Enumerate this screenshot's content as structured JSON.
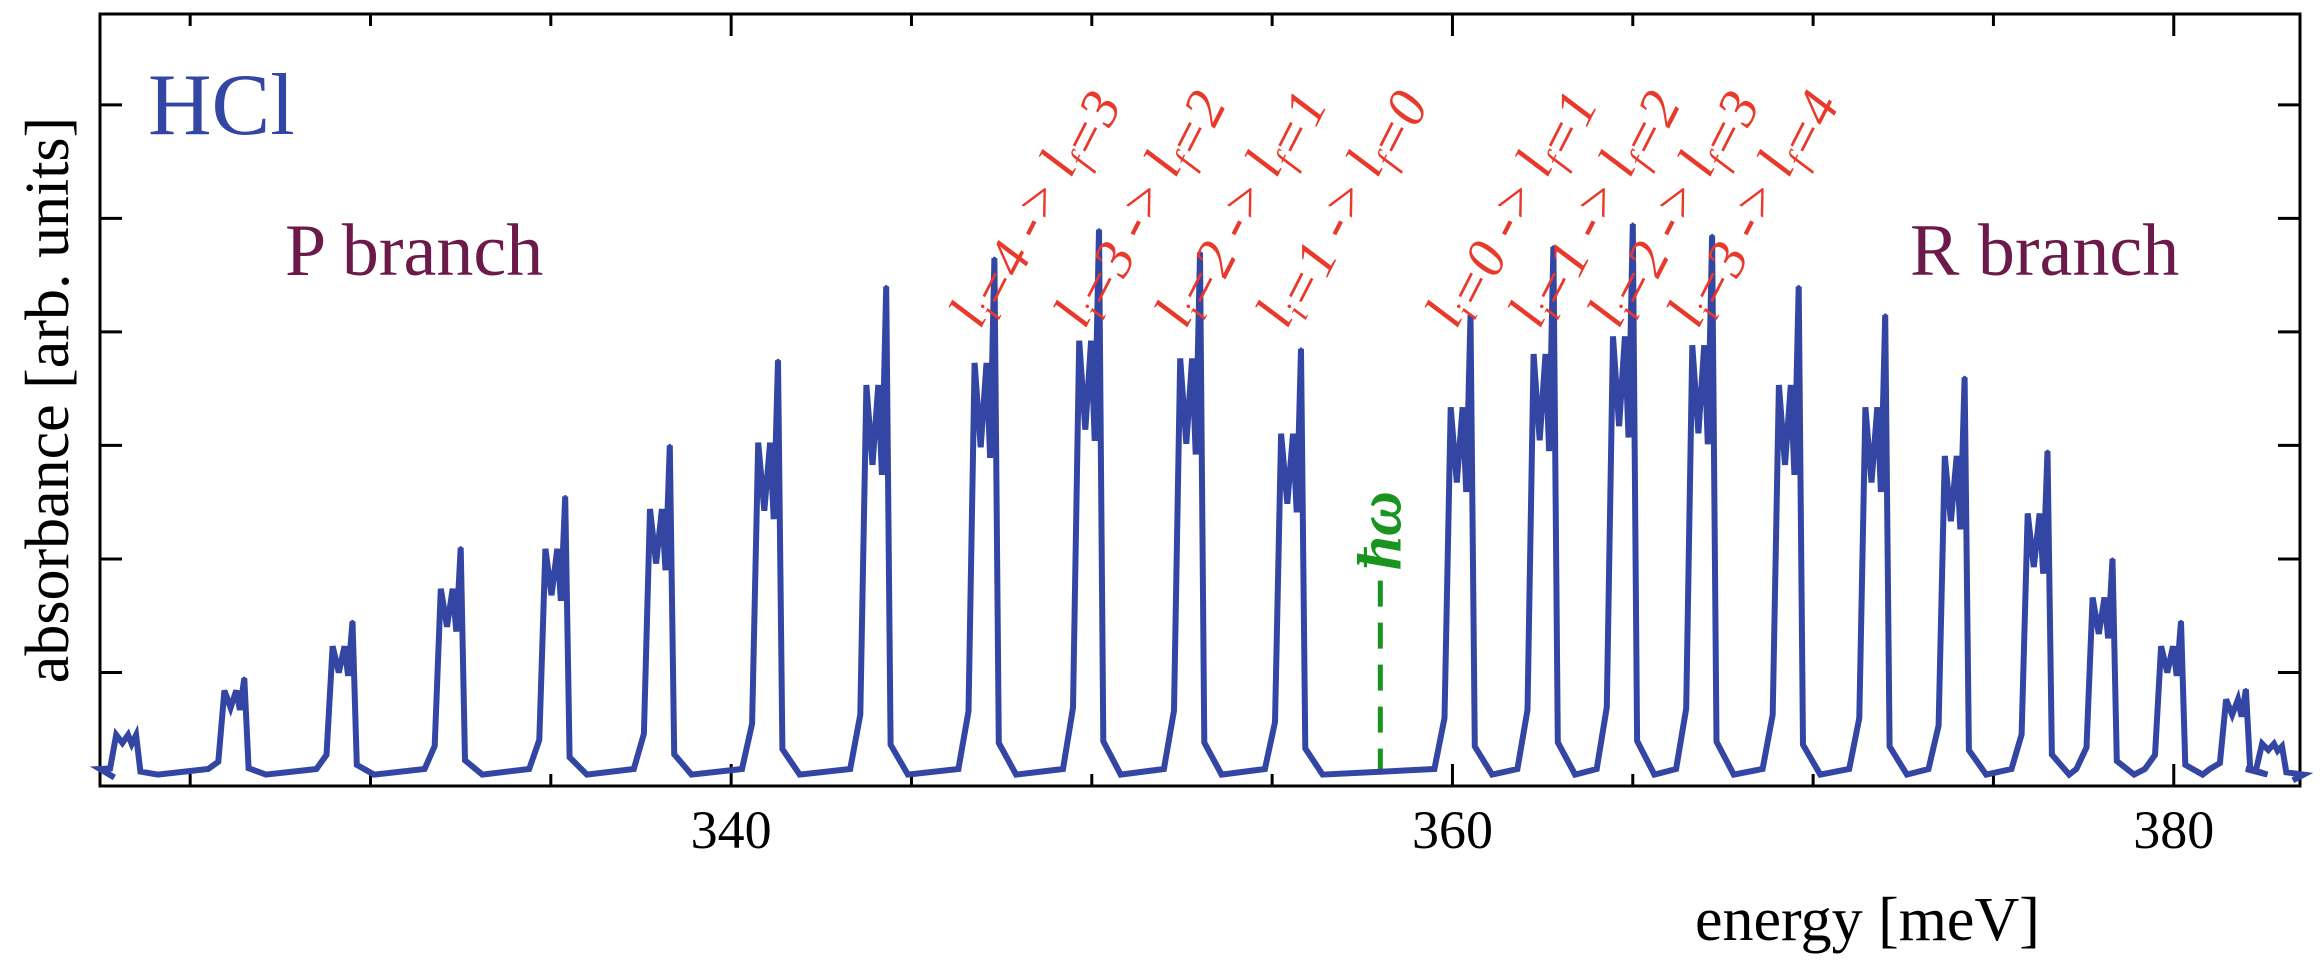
{
  "chart_data": {
    "type": "line",
    "title": "",
    "xlabel": "energy [meV]",
    "ylabel": "absorbance [arb. units]",
    "xlim": [
      322.5,
      383.5
    ],
    "ylim": [
      0,
      1.36
    ],
    "xticks": [
      340,
      360,
      380
    ],
    "xtick_labels": [
      "340",
      "360",
      "380"
    ],
    "xtick_minor_step": 5,
    "yticks": [
      0.2,
      0.4,
      0.6,
      0.8,
      1.0,
      1.2
    ],
    "ytick_labels_shown": false,
    "grid": false,
    "line_color": "#3446a3",
    "annotations": {
      "species": {
        "text": "HCl",
        "color": "#3446a3"
      },
      "p_branch": {
        "text": "P branch",
        "color": "#6b1a4a"
      },
      "r_branch": {
        "text": "R branch",
        "color": "#6b1a4a"
      },
      "center_line": {
        "x": 358,
        "label": "ħω",
        "color": "#1a9420",
        "style": "dashed"
      },
      "transitions_color": "#e8392b",
      "transitions": [
        {
          "x": 347.3,
          "li": "4",
          "lf": "3"
        },
        {
          "x": 350.2,
          "li": "3",
          "lf": "2"
        },
        {
          "x": 353.0,
          "li": "2",
          "lf": "1"
        },
        {
          "x": 355.8,
          "li": "1",
          "lf": "0"
        },
        {
          "x": 360.5,
          "li": "0",
          "lf": "1"
        },
        {
          "x": 362.8,
          "li": "1",
          "lf": "2"
        },
        {
          "x": 365.0,
          "li": "2",
          "lf": "3"
        },
        {
          "x": 367.2,
          "li": "3",
          "lf": "4"
        }
      ]
    },
    "peaks": [
      {
        "x": 323.5,
        "y": 0.09
      },
      {
        "x": 326.5,
        "y": 0.19
      },
      {
        "x": 329.5,
        "y": 0.29
      },
      {
        "x": 332.5,
        "y": 0.42
      },
      {
        "x": 335.4,
        "y": 0.51
      },
      {
        "x": 338.3,
        "y": 0.6
      },
      {
        "x": 341.3,
        "y": 0.75
      },
      {
        "x": 344.3,
        "y": 0.88
      },
      {
        "x": 347.3,
        "y": 0.93
      },
      {
        "x": 350.2,
        "y": 0.98
      },
      {
        "x": 353.0,
        "y": 0.94
      },
      {
        "x": 355.8,
        "y": 0.77
      },
      {
        "x": 360.5,
        "y": 0.83
      },
      {
        "x": 362.8,
        "y": 0.95
      },
      {
        "x": 365.0,
        "y": 0.99
      },
      {
        "x": 367.2,
        "y": 0.97
      },
      {
        "x": 369.6,
        "y": 0.88
      },
      {
        "x": 372.0,
        "y": 0.83
      },
      {
        "x": 374.2,
        "y": 0.72
      },
      {
        "x": 376.5,
        "y": 0.59
      },
      {
        "x": 378.3,
        "y": 0.4
      },
      {
        "x": 380.2,
        "y": 0.29
      },
      {
        "x": 382.0,
        "y": 0.17
      },
      {
        "x": 383.0,
        "y": 0.07
      }
    ],
    "baseline": 0.02
  }
}
